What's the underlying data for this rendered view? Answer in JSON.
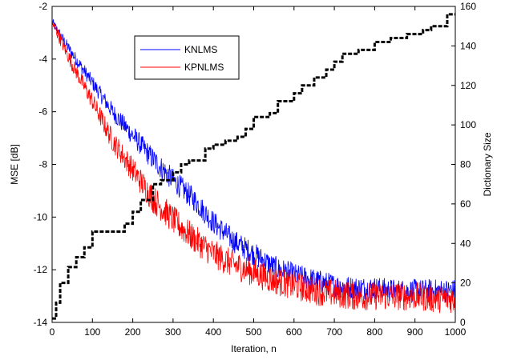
{
  "chart_data": {
    "type": "line",
    "xlabel": "Iteration, n",
    "ylabel_left": "MSE [dB]",
    "ylabel_right": "Dictionary Size",
    "xlim": [
      0,
      1000
    ],
    "ylim_left": [
      -14,
      -2
    ],
    "ylim_right": [
      0,
      160
    ],
    "xticks": [
      "0",
      "100",
      "200",
      "300",
      "400",
      "500",
      "600",
      "700",
      "800",
      "900",
      "1000"
    ],
    "yticks_left": [
      "-2",
      "-4",
      "-6",
      "-8",
      "-10",
      "-12",
      "-14"
    ],
    "yticks_right": [
      "160",
      "140",
      "120",
      "100",
      "80",
      "60",
      "40",
      "20",
      "0"
    ],
    "grid": false,
    "legend_position": "top-left",
    "series": [
      {
        "name": "KNLMS",
        "axis": "left",
        "color": "#0000ff",
        "x": [
          0,
          50,
          100,
          150,
          200,
          250,
          300,
          350,
          400,
          450,
          500,
          550,
          600,
          650,
          700,
          750,
          800,
          850,
          900,
          950,
          1000
        ],
        "values": [
          -2.6,
          -3.8,
          -4.9,
          -6.0,
          -6.9,
          -7.8,
          -8.6,
          -9.3,
          -10.2,
          -10.9,
          -11.4,
          -11.9,
          -12.2,
          -12.4,
          -12.6,
          -12.7,
          -12.7,
          -12.8,
          -12.8,
          -12.8,
          -12.8
        ]
      },
      {
        "name": "KPNLMS",
        "axis": "left",
        "color": "#ff0000",
        "x": [
          0,
          50,
          100,
          150,
          200,
          250,
          300,
          350,
          400,
          450,
          500,
          550,
          600,
          650,
          700,
          750,
          800,
          850,
          900,
          950,
          1000
        ],
        "values": [
          -2.6,
          -4.2,
          -5.6,
          -7.1,
          -8.2,
          -9.3,
          -10.1,
          -10.8,
          -11.4,
          -11.8,
          -12.1,
          -12.4,
          -12.6,
          -12.8,
          -12.9,
          -13.0,
          -13.0,
          -13.0,
          -13.0,
          -13.1,
          -13.1
        ]
      },
      {
        "name": "Dictionary Size",
        "axis": "right",
        "color": "#000000",
        "style": "dashed",
        "x": [
          0,
          10,
          20,
          40,
          60,
          80,
          100,
          160,
          180,
          200,
          220,
          250,
          270,
          300,
          320,
          340,
          380,
          400,
          430,
          460,
          480,
          500,
          540,
          560,
          600,
          620,
          650,
          680,
          700,
          720,
          760,
          800,
          840,
          880,
          920,
          940,
          980,
          1000
        ],
        "values": [
          2,
          10,
          20,
          28,
          33,
          38,
          46,
          46,
          50,
          56,
          62,
          70,
          72,
          76,
          80,
          82,
          88,
          90,
          92,
          94,
          98,
          104,
          106,
          112,
          116,
          120,
          124,
          128,
          132,
          136,
          138,
          142,
          144,
          146,
          148,
          150,
          156,
          156
        ]
      }
    ]
  }
}
